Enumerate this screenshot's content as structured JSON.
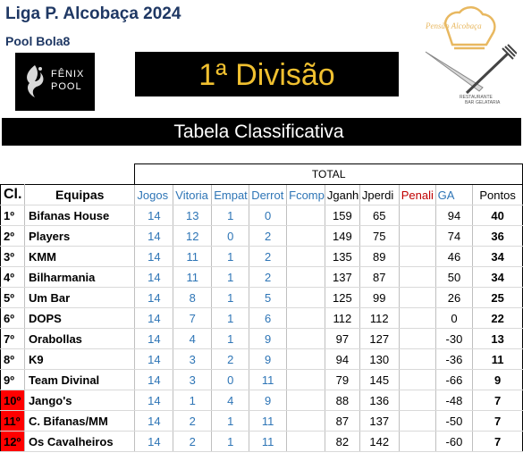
{
  "header": {
    "title": "Liga P. Alcobaça 2024",
    "subtitle": "Pool Bola8",
    "division": "1ª Divisão",
    "section": "Tabela Classificativa"
  },
  "logos": {
    "left": {
      "line1": "FÊNIX",
      "line2": "POOL",
      "icon": "phoenix-icon"
    },
    "right": {
      "name": "Pensão Alcobaça",
      "tag1": "RESTAURANTE",
      "tag2": "BAR",
      "tag3": "GELATARIA",
      "icon": "chef-hat-cutlery-icon"
    }
  },
  "table": {
    "group_label": "TOTAL",
    "columns": {
      "cl": "Cl.",
      "team": "Equipas",
      "jogos": "Jogos",
      "vitorias": "Vitoria",
      "empates": "Empat",
      "derrotas": "Derrot",
      "fcomp": "Fcomp",
      "jganhos": "Jganh",
      "jperdidos": "Jperdi",
      "penal": "Penali",
      "ga": "GA",
      "pontos": "Pontos"
    },
    "rows": [
      {
        "pos": "1º",
        "team": "Bifanas House",
        "j": "14",
        "v": "13",
        "e": "1",
        "d": "0",
        "f": "",
        "jg": "159",
        "jp": "65",
        "pen": "",
        "ga": "94",
        "pts": "40",
        "highlight": false
      },
      {
        "pos": "2º",
        "team": "Players",
        "j": "14",
        "v": "12",
        "e": "0",
        "d": "2",
        "f": "",
        "jg": "149",
        "jp": "75",
        "pen": "",
        "ga": "74",
        "pts": "36",
        "highlight": false
      },
      {
        "pos": "3º",
        "team": "KMM",
        "j": "14",
        "v": "11",
        "e": "1",
        "d": "2",
        "f": "",
        "jg": "135",
        "jp": "89",
        "pen": "",
        "ga": "46",
        "pts": "34",
        "highlight": false
      },
      {
        "pos": "4º",
        "team": "Bilharmania",
        "j": "14",
        "v": "11",
        "e": "1",
        "d": "2",
        "f": "",
        "jg": "137",
        "jp": "87",
        "pen": "",
        "ga": "50",
        "pts": "34",
        "highlight": false
      },
      {
        "pos": "5º",
        "team": "Um Bar",
        "j": "14",
        "v": "8",
        "e": "1",
        "d": "5",
        "f": "",
        "jg": "125",
        "jp": "99",
        "pen": "",
        "ga": "26",
        "pts": "25",
        "highlight": false
      },
      {
        "pos": "6º",
        "team": "DOPS",
        "j": "14",
        "v": "7",
        "e": "1",
        "d": "6",
        "f": "",
        "jg": "112",
        "jp": "112",
        "pen": "",
        "ga": "0",
        "pts": "22",
        "highlight": false
      },
      {
        "pos": "7º",
        "team": "Orabollas",
        "j": "14",
        "v": "4",
        "e": "1",
        "d": "9",
        "f": "",
        "jg": "97",
        "jp": "127",
        "pen": "",
        "ga": "-30",
        "pts": "13",
        "highlight": false
      },
      {
        "pos": "8º",
        "team": "K9",
        "j": "14",
        "v": "3",
        "e": "2",
        "d": "9",
        "f": "",
        "jg": "94",
        "jp": "130",
        "pen": "",
        "ga": "-36",
        "pts": "11",
        "highlight": false
      },
      {
        "pos": "9º",
        "team": "Team Divinal",
        "j": "14",
        "v": "3",
        "e": "0",
        "d": "11",
        "f": "",
        "jg": "79",
        "jp": "145",
        "pen": "",
        "ga": "-66",
        "pts": "9",
        "highlight": false
      },
      {
        "pos": "10º",
        "team": "Jango's",
        "j": "14",
        "v": "1",
        "e": "4",
        "d": "9",
        "f": "",
        "jg": "88",
        "jp": "136",
        "pen": "",
        "ga": "-48",
        "pts": "7",
        "highlight": true
      },
      {
        "pos": "11º",
        "team": "C. Bifanas/MM",
        "j": "14",
        "v": "2",
        "e": "1",
        "d": "11",
        "f": "",
        "jg": "87",
        "jp": "137",
        "pen": "",
        "ga": "-50",
        "pts": "7",
        "highlight": true
      },
      {
        "pos": "12º",
        "team": "Os Cavalheiros",
        "j": "14",
        "v": "2",
        "e": "1",
        "d": "11",
        "f": "",
        "jg": "82",
        "jp": "142",
        "pen": "",
        "ga": "-60",
        "pts": "7",
        "highlight": true
      }
    ]
  }
}
